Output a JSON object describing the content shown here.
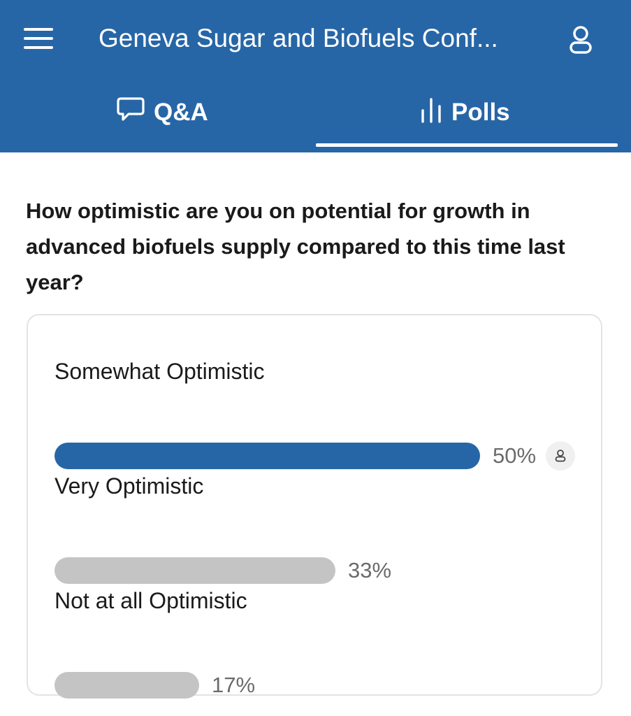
{
  "header": {
    "title": "Geneva Sugar and Biofuels Conf...",
    "background_color": "#2766a6",
    "menu_icon": "hamburger-menu-icon",
    "profile_icon": "user-icon"
  },
  "tabs": [
    {
      "label": "Q&A",
      "icon": "chat-bubble-icon",
      "active": false
    },
    {
      "label": "Polls",
      "icon": "bar-chart-icon",
      "active": true
    }
  ],
  "poll": {
    "question": "How optimistic are you on potential for growth in advanced biofuels supply compared to this time last year?",
    "options": [
      {
        "label": "Somewhat Optimistic",
        "percent": 50,
        "percent_text": "50%",
        "selected": true,
        "color": "#2766a6"
      },
      {
        "label": "Very Optimistic",
        "percent": 33,
        "percent_text": "33%",
        "selected": false,
        "color": "#c4c4c4"
      },
      {
        "label": "Not at all Optimistic",
        "percent": 17,
        "percent_text": "17%",
        "selected": false,
        "color": "#c4c4c4"
      }
    ],
    "voted_icon": "user-icon"
  }
}
